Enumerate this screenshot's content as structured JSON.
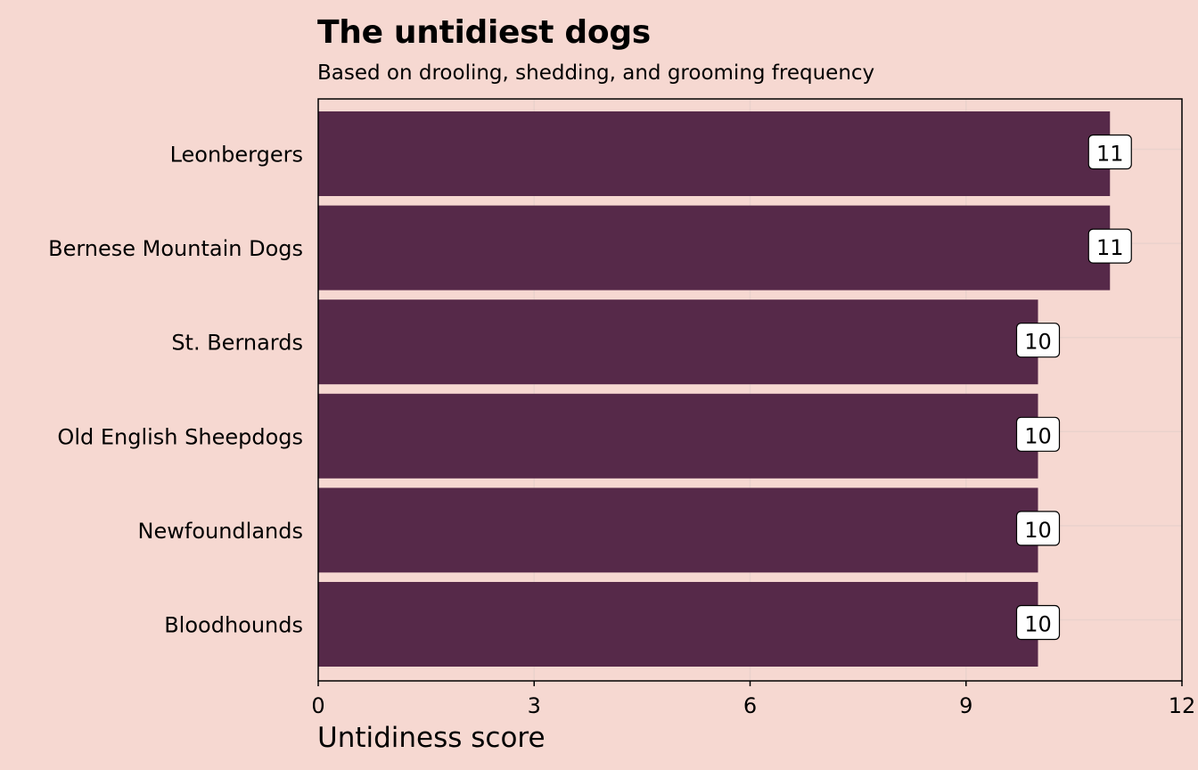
{
  "colors": {
    "background": "#f6d8d1",
    "bar": "#562949",
    "grid": "#ead2cc",
    "axis": "#000000",
    "label_box": "#ffffff"
  },
  "chart_data": {
    "type": "bar",
    "orientation": "horizontal",
    "title": "The untidiest dogs",
    "subtitle": "Based on drooling, shedding, and grooming frequency",
    "xlabel": "Untidiness score",
    "ylabel": "",
    "categories": [
      "Leonbergers",
      "Bernese Mountain Dogs",
      "St. Bernards",
      "Old English Sheepdogs",
      "Newfoundlands",
      "Bloodhounds"
    ],
    "values": [
      11,
      11,
      10,
      10,
      10,
      10
    ],
    "data_labels": [
      "11",
      "11",
      "10",
      "10",
      "10",
      "10"
    ],
    "xlim": [
      0,
      12
    ],
    "x_ticks": [
      0,
      3,
      6,
      9,
      12
    ],
    "x_tick_labels": [
      "0",
      "3",
      "6",
      "9",
      "12"
    ],
    "grid": true,
    "legend": "none"
  }
}
